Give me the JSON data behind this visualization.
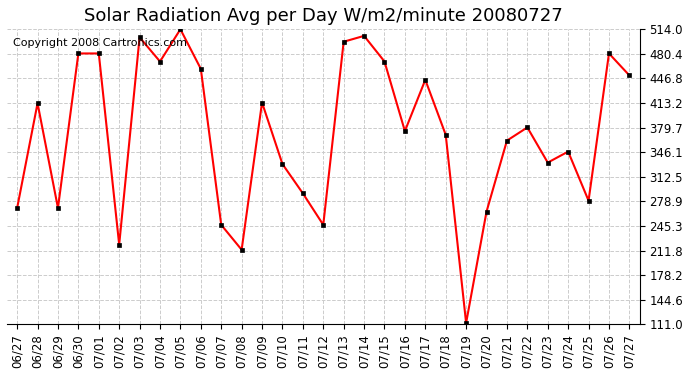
{
  "title": "Solar Radiation Avg per Day W/m2/minute 20080727",
  "copyright": "Copyright 2008 Cartronics.com",
  "dates": [
    "06/27",
    "06/28",
    "06/29",
    "06/30",
    "07/01",
    "07/02",
    "07/03",
    "07/04",
    "07/05",
    "07/06",
    "07/07",
    "07/08",
    "07/09",
    "07/10",
    "07/11",
    "07/12",
    "07/13",
    "07/14",
    "07/15",
    "07/16",
    "07/17",
    "07/18",
    "07/19",
    "07/20",
    "07/21",
    "07/22",
    "07/23",
    "07/24",
    "07/25",
    "07/26",
    "07/27"
  ],
  "values": [
    270,
    413,
    270,
    481,
    481,
    220,
    503,
    470,
    514,
    460,
    247,
    213,
    414,
    330,
    290,
    247,
    497,
    505,
    470,
    375,
    445,
    370,
    113,
    265,
    362,
    380,
    332,
    347,
    280,
    481,
    451
  ],
  "ylim_min": 111.0,
  "ylim_max": 514.0,
  "yticks": [
    111.0,
    144.6,
    178.2,
    211.8,
    245.3,
    278.9,
    312.5,
    346.1,
    379.7,
    413.2,
    446.8,
    480.4,
    514.0
  ],
  "line_color": "red",
  "marker": "s",
  "marker_size": 3,
  "grid_color": "#cccccc",
  "bg_color": "white",
  "title_fontsize": 13,
  "tick_fontsize": 8.5,
  "copyright_fontsize": 8
}
